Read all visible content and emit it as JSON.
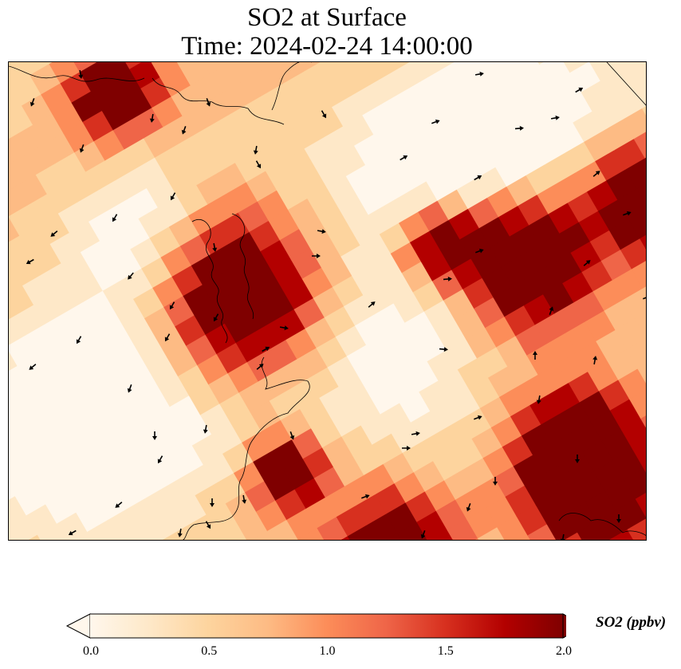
{
  "title": {
    "line1": "SO2 at Surface",
    "line2": "Time: 2024-02-24 14:00:00"
  },
  "colorbar": {
    "label": "SO2 (ppbv)",
    "ticks": [
      "0.0",
      "0.5",
      "1.0",
      "1.5",
      "2.0"
    ],
    "min": 0,
    "max": 2,
    "extend": "both",
    "colormap": "OrRd",
    "colors": [
      "#fff7ec",
      "#fee8c8",
      "#fdd49e",
      "#fdbb84",
      "#fc8d59",
      "#ef6548",
      "#d7301f",
      "#b30000",
      "#7f0000"
    ]
  },
  "map": {
    "field": "SO2",
    "level": "Surface",
    "coastlines": true,
    "wind_vectors": true
  }
}
